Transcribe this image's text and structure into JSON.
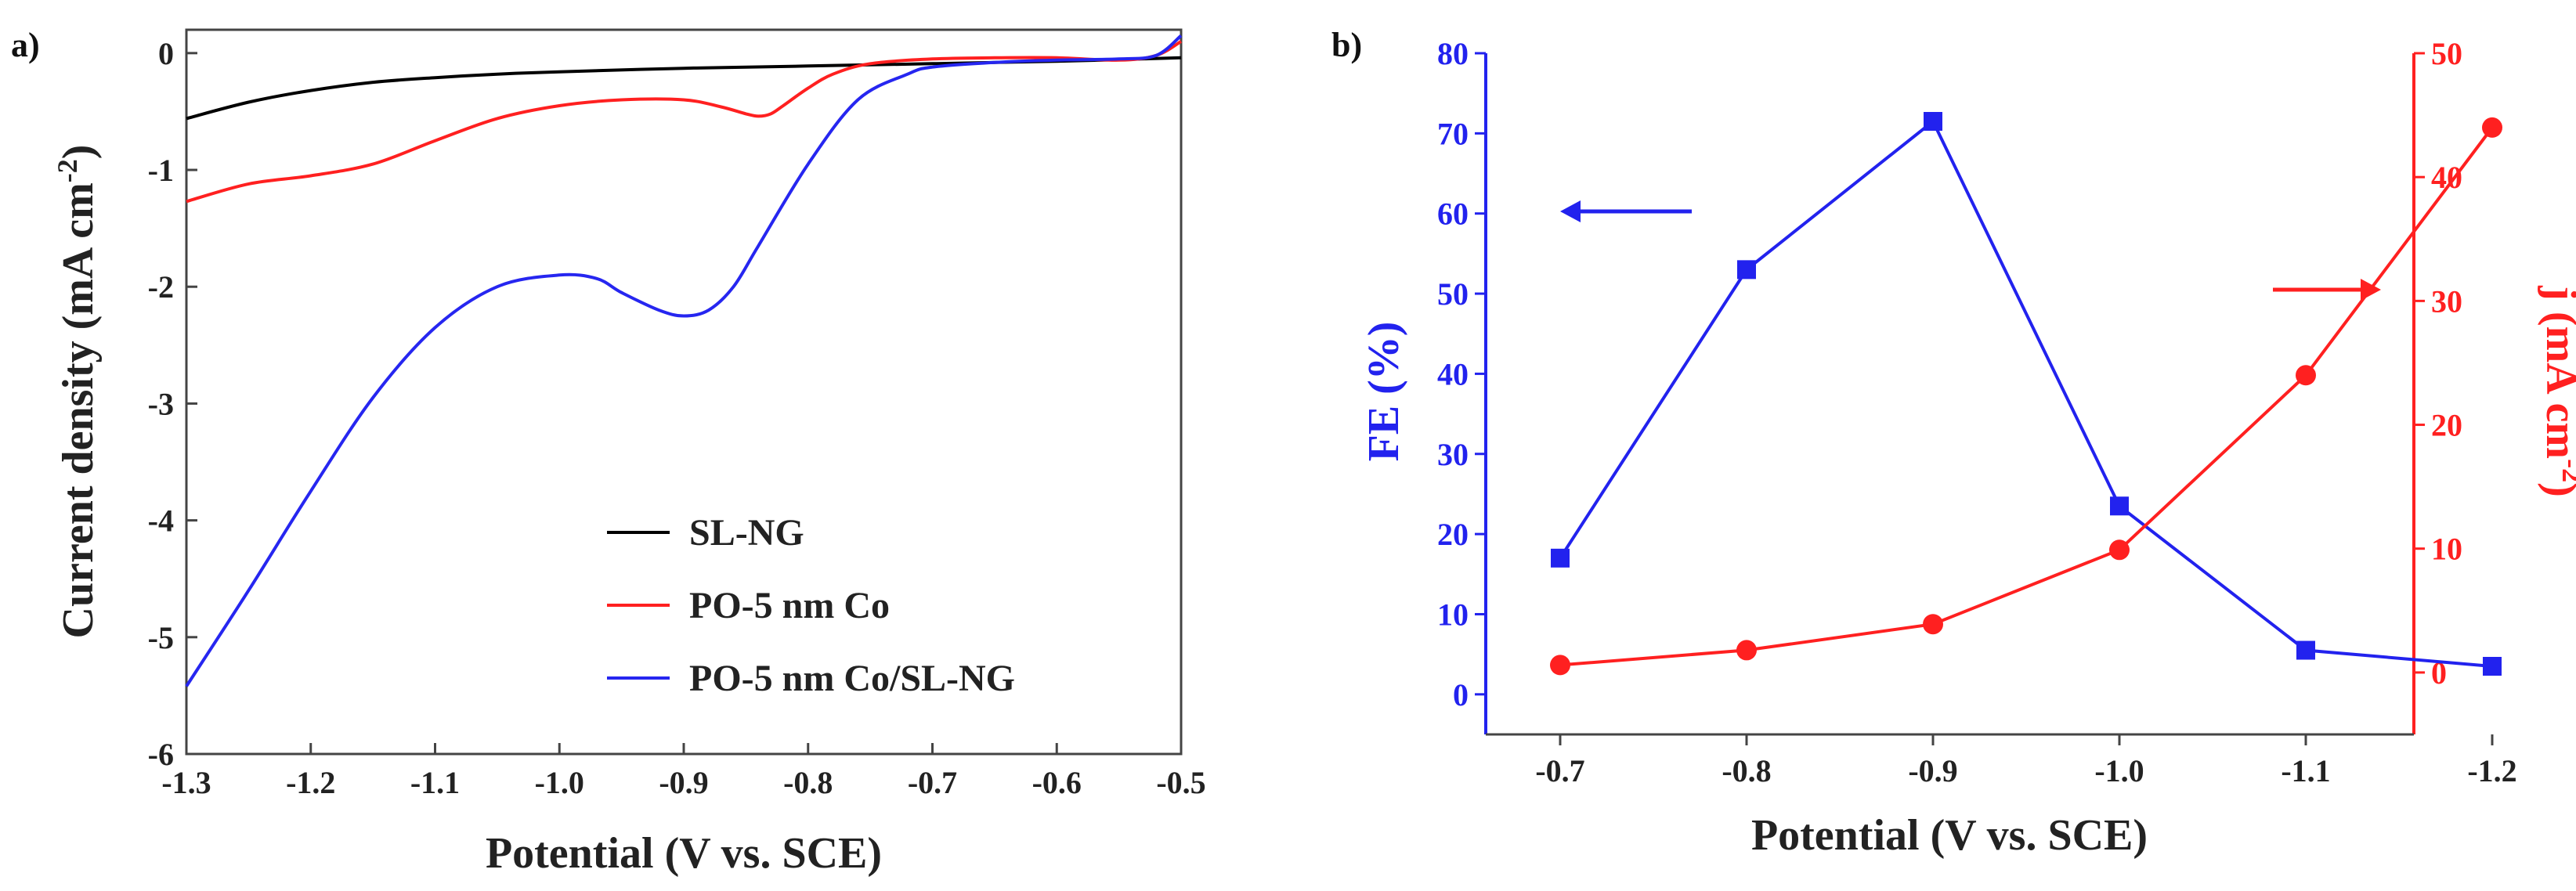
{
  "chart_data": [
    {
      "panel": "a)",
      "type": "line",
      "xlabel": "Potential (V vs. SCE)",
      "ylabel": "Current density (mA cm",
      "ylabel_sup": "-2",
      "ylabel_close": ")",
      "xlim": [
        -1.3,
        -0.5
      ],
      "ylim": [
        -6,
        0.2
      ],
      "xticks": [
        "-1.3",
        "-1.2",
        "-1.1",
        "-1.0",
        "-0.9",
        "-0.8",
        "-0.7",
        "-0.6",
        "-0.5"
      ],
      "xtick_values": [
        -1.3,
        -1.2,
        -1.1,
        -1.0,
        -0.9,
        -0.8,
        -0.7,
        -0.6,
        -0.5
      ],
      "yticks": [
        "0",
        "-1",
        "-2",
        "-3",
        "-4",
        "-5",
        "-6"
      ],
      "ytick_values": [
        0,
        -1,
        -2,
        -3,
        -4,
        -5,
        -6
      ],
      "legend_position": "bottom-right",
      "series": [
        {
          "name": "SL-NG",
          "color": "#000000",
          "x": [
            -1.3,
            -1.25,
            -1.2,
            -1.15,
            -1.1,
            -1.05,
            -1.0,
            -0.9,
            -0.8,
            -0.7,
            -0.6,
            -0.5
          ],
          "y": [
            -0.56,
            -0.42,
            -0.32,
            -0.25,
            -0.21,
            -0.18,
            -0.16,
            -0.13,
            -0.11,
            -0.09,
            -0.07,
            -0.04
          ]
        },
        {
          "name": "PO-5 nm Co",
          "color": "#ff2020",
          "x": [
            -1.3,
            -1.25,
            -1.2,
            -1.15,
            -1.1,
            -1.05,
            -1.0,
            -0.95,
            -0.9,
            -0.87,
            -0.85,
            -0.84,
            -0.83,
            -0.82,
            -0.8,
            -0.78,
            -0.75,
            -0.7,
            -0.65,
            -0.6,
            -0.55,
            -0.52,
            -0.5
          ],
          "y": [
            -1.27,
            -1.12,
            -1.05,
            -0.95,
            -0.75,
            -0.56,
            -0.45,
            -0.4,
            -0.4,
            -0.46,
            -0.52,
            -0.54,
            -0.52,
            -0.45,
            -0.3,
            -0.18,
            -0.09,
            -0.05,
            -0.04,
            -0.04,
            -0.06,
            -0.02,
            0.1
          ]
        },
        {
          "name": "PO-5 nm Co/SL-NG",
          "color": "#2626f0",
          "x": [
            -1.3,
            -1.25,
            -1.2,
            -1.15,
            -1.1,
            -1.05,
            -1.0,
            -0.97,
            -0.95,
            -0.92,
            -0.9,
            -0.88,
            -0.86,
            -0.84,
            -0.8,
            -0.76,
            -0.72,
            -0.7,
            -0.65,
            -0.6,
            -0.55,
            -0.52,
            -0.5
          ],
          "y": [
            -5.42,
            -4.6,
            -3.75,
            -2.95,
            -2.35,
            -2.0,
            -1.9,
            -1.93,
            -2.05,
            -2.2,
            -2.25,
            -2.2,
            -2.0,
            -1.65,
            -0.95,
            -0.4,
            -0.18,
            -0.12,
            -0.08,
            -0.06,
            -0.05,
            -0.02,
            0.15
          ]
        }
      ]
    },
    {
      "panel": "b)",
      "type": "line",
      "xlabel": "Potential (V vs. SCE)",
      "categories": [
        "-0.7",
        "-0.8",
        "-0.9",
        "-1.0",
        "-1.1",
        "-1.2"
      ],
      "series": [
        {
          "name": "FE (%)",
          "axis": "left",
          "color": "#2222ee",
          "marker": "square",
          "values": [
            17,
            53,
            71.5,
            23.5,
            5.5,
            3.5
          ]
        },
        {
          "name": "j (mA cm-2)",
          "axis": "right",
          "color": "#ff2020",
          "marker": "circle",
          "values": [
            0.6,
            1.8,
            3.9,
            9.9,
            24,
            44
          ]
        }
      ],
      "ylabel_left": "FE (%)",
      "ylim_left": [
        -5,
        80
      ],
      "yticks_left": [
        "0",
        "10",
        "20",
        "30",
        "40",
        "50",
        "60",
        "70",
        "80"
      ],
      "ylabel_right": "j (mA cm",
      "ylabel_right_sup": "-2",
      "ylabel_right_close": ")",
      "ylim_right": [
        -5,
        50
      ],
      "yticks_right": [
        "0",
        "10",
        "20",
        "30",
        "40",
        "50"
      ],
      "annotations": [
        "left arrow points to FE axis",
        "right arrow points to j axis"
      ]
    }
  ],
  "colors": {
    "axis_a": "#444444",
    "left_axis_b": "#2222ee",
    "right_axis_b": "#ff2020",
    "bottom_axis_b": "#444444"
  }
}
